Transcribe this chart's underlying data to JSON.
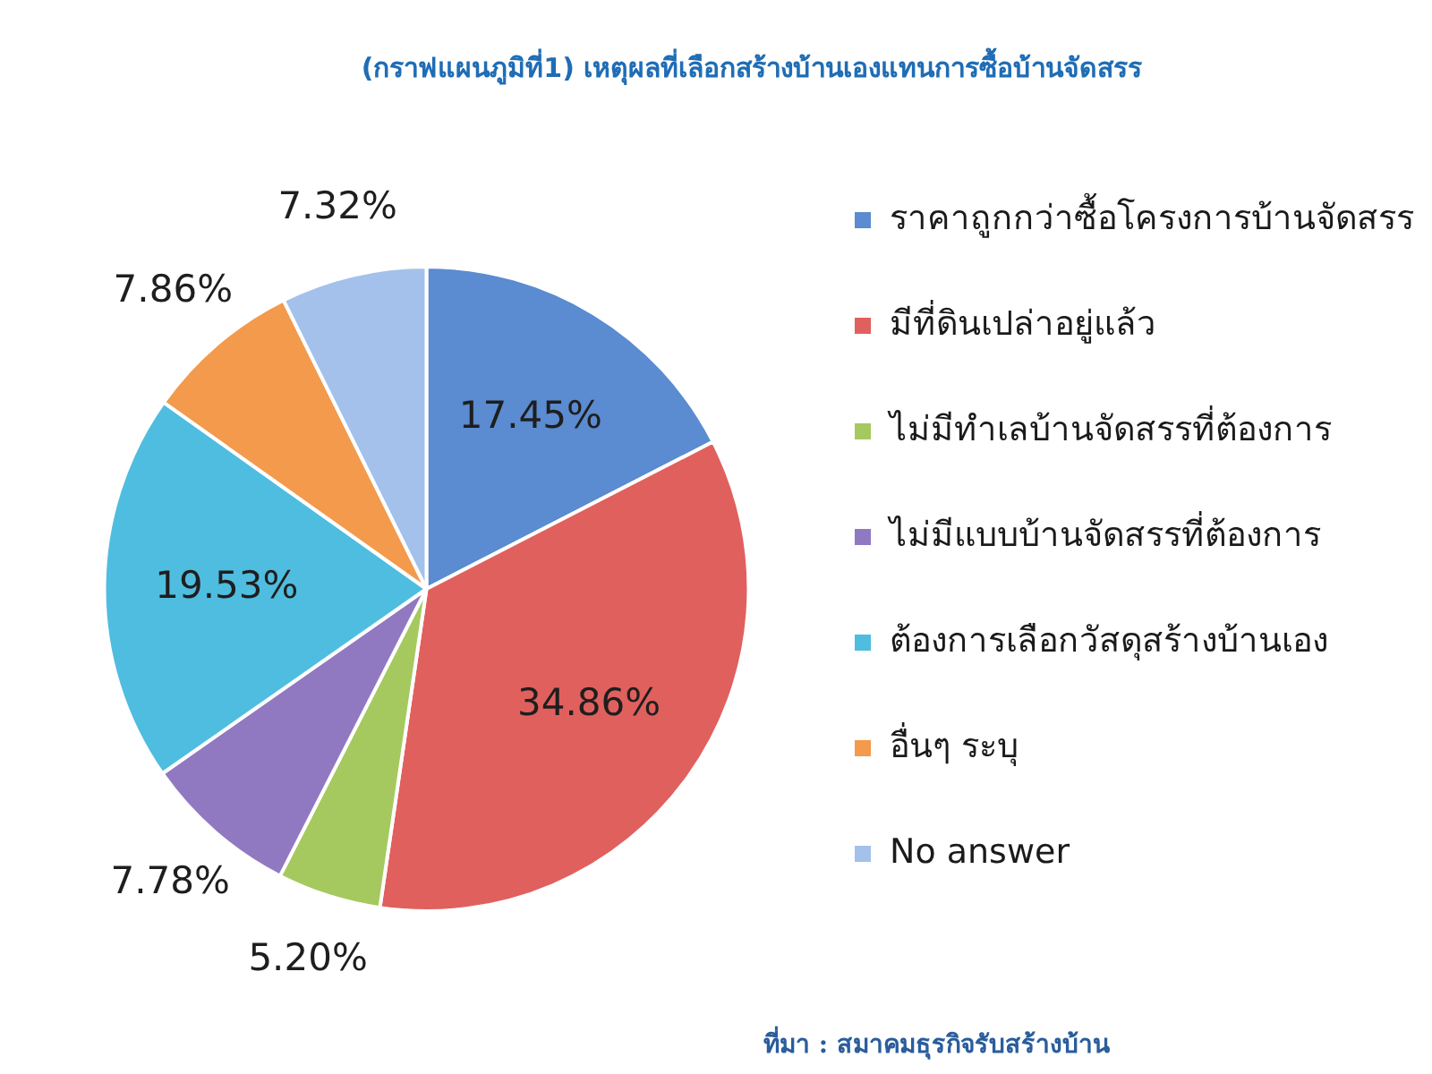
{
  "chart_data": {
    "type": "pie",
    "title": "(กราฟแผนภูมิที่1) เหตุผลที่เลือกสร้างบ้านเองแทนการซื้อบ้านจัดสรร",
    "categories": [
      "ราคาถูกกว่าซื้อโครงการบ้านจัดสรร",
      "มีที่ดินเปล่าอยู่แล้ว",
      "ไม่มีทำเลบ้านจัดสรรที่ต้องการ",
      "ไม่มีแบบบ้านจัดสรรที่ต้องการ",
      "ต้องการเลือกวัสดุสร้างบ้านเอง",
      "อื่นๆ ระบุ",
      "No answer"
    ],
    "values": [
      17.45,
      34.86,
      5.2,
      7.78,
      19.53,
      7.86,
      7.32
    ],
    "colors": [
      "#5b8bd0",
      "#e0605e",
      "#a5c95e",
      "#9179c2",
      "#4fbde0",
      "#f39a4c",
      "#a3c1ea"
    ],
    "value_labels": [
      "17.45%",
      "34.86%",
      "5.20%",
      "7.78%",
      "19.53%",
      "7.86%",
      "7.32%"
    ],
    "legend": "right",
    "annotations": [
      "ที่มา : สมาคมธุรกิจรับสร้างบ้าน"
    ]
  }
}
